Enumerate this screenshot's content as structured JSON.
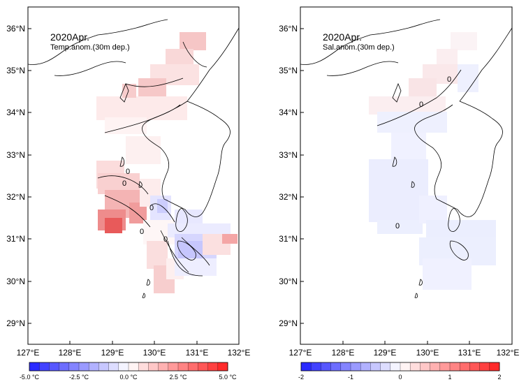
{
  "panels": [
    {
      "id": "temp",
      "title": "2020Apr.",
      "subtitle": "Temp.anom.(30m dep.)",
      "lat_ticks": [
        "29°N",
        "30°N",
        "31°N",
        "32°N",
        "33°N",
        "34°N",
        "35°N",
        "36°N"
      ],
      "lon_ticks": [
        "127°E",
        "128°E",
        "129°E",
        "130°E",
        "131°E",
        "132°E"
      ],
      "contour_labels": [
        "0",
        "0",
        "0",
        "0",
        "0"
      ],
      "colorbar": {
        "labels": [
          "-5.0 °C",
          "-2.5 °C",
          "0.0 °C",
          "2.5 °C",
          "5.0 °C"
        ],
        "min": -5,
        "max": 5,
        "steps": 20
      }
    },
    {
      "id": "sal",
      "title": "2020Apr.",
      "subtitle": "Sal.anom.(30m dep.)",
      "lat_ticks": [
        "29°N",
        "30°N",
        "31°N",
        "32°N",
        "33°N",
        "34°N",
        "35°N",
        "36°N"
      ],
      "lon_ticks": [
        "127°E",
        "128°E",
        "129°E",
        "130°E",
        "131°E",
        "132°E"
      ],
      "contour_labels": [
        "0",
        "0",
        "0"
      ],
      "colorbar": {
        "labels": [
          "-2",
          "-1",
          "0",
          "1",
          "2"
        ],
        "min": -2,
        "max": 2,
        "steps": 20
      }
    }
  ],
  "colors": {
    "negative": "#1f1fff",
    "neutral": "#ffffff",
    "positive": "#ff1f1f"
  }
}
